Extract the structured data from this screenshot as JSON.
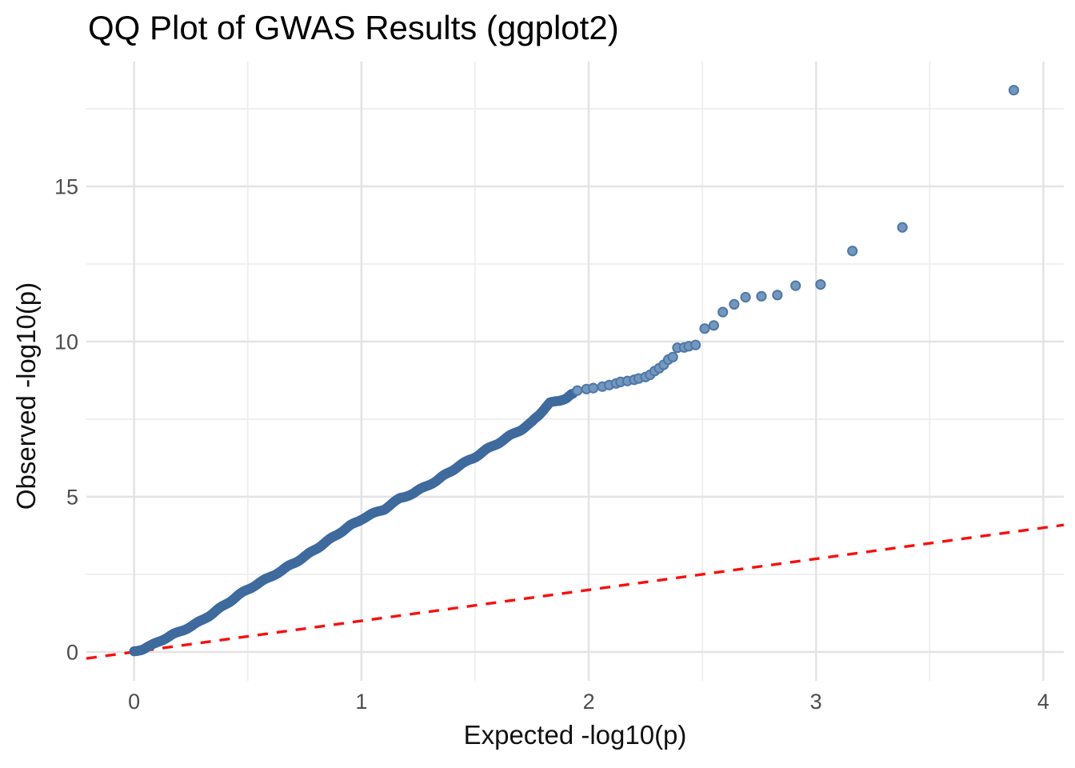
{
  "chart_data": {
    "type": "scatter",
    "title": "QQ Plot of GWAS Results (ggplot2)",
    "xlabel": "Expected -log10(p)",
    "ylabel": "Observed -log10(p)",
    "x_ticks": [
      0,
      1,
      2,
      3,
      4
    ],
    "y_ticks": [
      0,
      5,
      10,
      15
    ],
    "x_minor_gridlines": [
      0.5,
      1.5,
      2.5,
      3.5
    ],
    "y_minor_gridlines": [
      2.5,
      7.5,
      12.5,
      17.5
    ],
    "x_domain": [
      -0.21,
      4.09
    ],
    "y_domain": [
      -0.93,
      19.02
    ],
    "grid": true,
    "legend": "none",
    "colors": {
      "band_point": "#3E6A9E",
      "point_fill": "#7497BF",
      "point_stroke": "#4E78A6",
      "reference_line": "#FA0E0E",
      "major_gridline": "#E4E4E4",
      "minor_gridline": "#EFEFEF",
      "tick_text": "#4d4d4d",
      "title_text": "#000000"
    },
    "reference_line": {
      "description": "identity line y = x",
      "slope": 1,
      "intercept": 0,
      "style": "dashed",
      "color": "#FA0E0E"
    },
    "dense_band_anchors": [
      [
        0.0,
        0.02
      ],
      [
        0.04,
        0.1
      ],
      [
        0.08,
        0.22
      ],
      [
        0.12,
        0.38
      ],
      [
        0.16,
        0.52
      ],
      [
        0.2,
        0.65
      ],
      [
        0.25,
        0.83
      ],
      [
        0.3,
        1.02
      ],
      [
        0.35,
        1.27
      ],
      [
        0.4,
        1.52
      ],
      [
        0.45,
        1.78
      ],
      [
        0.5,
        2.02
      ],
      [
        0.55,
        2.22
      ],
      [
        0.6,
        2.42
      ],
      [
        0.65,
        2.63
      ],
      [
        0.7,
        2.85
      ],
      [
        0.75,
        3.07
      ],
      [
        0.8,
        3.32
      ],
      [
        0.85,
        3.57
      ],
      [
        0.9,
        3.82
      ],
      [
        0.95,
        4.06
      ],
      [
        1.0,
        4.28
      ],
      [
        1.05,
        4.45
      ],
      [
        1.1,
        4.6
      ],
      [
        1.17,
        4.95
      ],
      [
        1.23,
        5.12
      ],
      [
        1.28,
        5.32
      ],
      [
        1.33,
        5.52
      ],
      [
        1.38,
        5.76
      ],
      [
        1.43,
        6.0
      ],
      [
        1.5,
        6.28
      ],
      [
        1.55,
        6.52
      ],
      [
        1.6,
        6.72
      ],
      [
        1.65,
        6.95
      ],
      [
        1.7,
        7.15
      ],
      [
        1.75,
        7.4
      ],
      [
        1.79,
        7.72
      ],
      [
        1.83,
        8.02
      ],
      [
        1.87,
        8.1
      ],
      [
        1.9,
        8.18
      ],
      [
        1.93,
        8.32
      ]
    ],
    "upper_points": [
      [
        1.95,
        8.42
      ],
      [
        1.99,
        8.47
      ],
      [
        2.02,
        8.5
      ],
      [
        2.06,
        8.55
      ],
      [
        2.09,
        8.6
      ],
      [
        2.12,
        8.65
      ],
      [
        2.14,
        8.7
      ],
      [
        2.17,
        8.73
      ],
      [
        2.2,
        8.77
      ],
      [
        2.22,
        8.81
      ],
      [
        2.25,
        8.86
      ],
      [
        2.27,
        8.93
      ],
      [
        2.29,
        9.05
      ],
      [
        2.31,
        9.14
      ],
      [
        2.33,
        9.25
      ],
      [
        2.35,
        9.42
      ],
      [
        2.37,
        9.5
      ],
      [
        2.39,
        9.8
      ],
      [
        2.42,
        9.81
      ],
      [
        2.44,
        9.85
      ],
      [
        2.47,
        9.89
      ],
      [
        2.51,
        10.42
      ],
      [
        2.55,
        10.52
      ],
      [
        2.59,
        10.95
      ],
      [
        2.64,
        11.2
      ],
      [
        2.69,
        11.43
      ],
      [
        2.76,
        11.46
      ],
      [
        2.83,
        11.5
      ],
      [
        2.91,
        11.8
      ],
      [
        3.02,
        11.84
      ],
      [
        3.16,
        12.92
      ],
      [
        3.38,
        13.68
      ],
      [
        3.87,
        18.1
      ]
    ]
  }
}
